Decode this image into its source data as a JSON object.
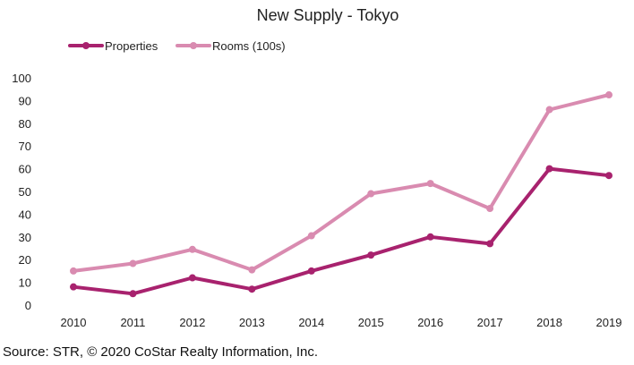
{
  "chart_data": {
    "type": "line",
    "title": "New Supply - Tokyo",
    "xlabel": "",
    "ylabel": "",
    "x": [
      "2010",
      "2011",
      "2012",
      "2013",
      "2014",
      "2015",
      "2016",
      "2017",
      "2018",
      "2019"
    ],
    "ylim": [
      0,
      100
    ],
    "yticks": [
      0,
      10,
      20,
      30,
      40,
      50,
      60,
      70,
      80,
      90,
      100
    ],
    "grid": false,
    "legend_position": "top-left",
    "series": [
      {
        "name": "Properties",
        "color": "#a8226e",
        "values": [
          8,
          5,
          12,
          7,
          15,
          22,
          30,
          27,
          60,
          57
        ]
      },
      {
        "name": "Rooms (100s)",
        "color": "#d98bb0",
        "values": [
          15,
          18.3,
          24.5,
          15.5,
          30.5,
          49,
          53.5,
          42.5,
          86,
          92.5
        ]
      }
    ]
  },
  "footer": {
    "source": "Source: STR, © 2020 CoStar Realty Information, Inc."
  }
}
